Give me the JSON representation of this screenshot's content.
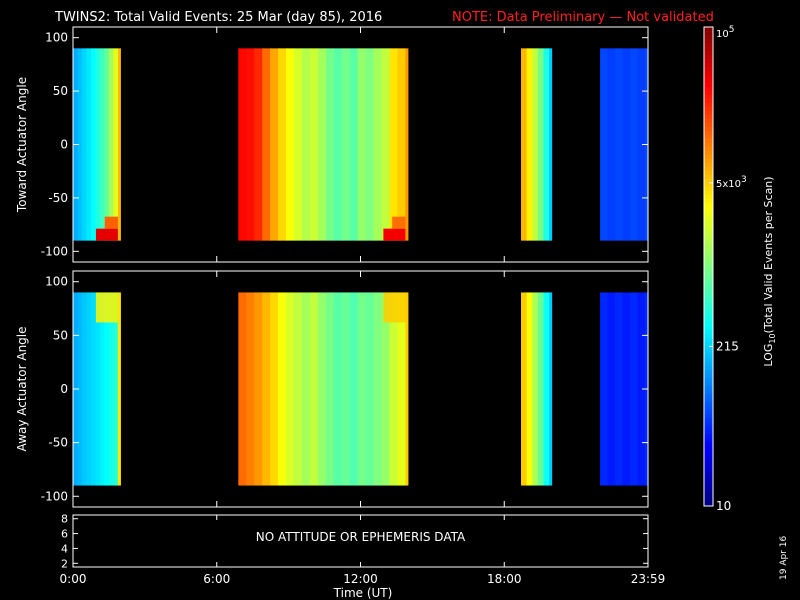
{
  "header": {
    "title": "TWINS2: Total Valid Events: 25 Mar (day  85), 2016",
    "note": "NOTE: Data Preliminary — Not validated"
  },
  "footer": {
    "xlabel": "Time (UT)",
    "date_stamp": "19 Apr 16"
  },
  "colorbar": {
    "label": "LOG10(Total Valid Events per Scan)",
    "ticks": [
      {
        "value": 100000,
        "label": "10^5"
      },
      {
        "value": 5000,
        "label": "5x10^3"
      },
      {
        "value": 215,
        "label": "215"
      },
      {
        "value": 10,
        "label": "10"
      }
    ],
    "range": [
      10,
      100000
    ],
    "scale": "log"
  },
  "chart_data": [
    {
      "type": "heatmap",
      "ylabel": "Toward Actuator Angle",
      "xlim": [
        0,
        24
      ],
      "ylim": [
        -110,
        110
      ],
      "y_ticks": [
        100,
        50,
        0,
        -50,
        -100
      ],
      "x_ticks": [
        "0:00",
        "6:00",
        "12:00",
        "18:00",
        "23:59"
      ],
      "data_ylim": [
        -90,
        90
      ],
      "segments": [
        {
          "start": 0.0,
          "end": 2.0,
          "columns": [
            150,
            180,
            220,
            260,
            320,
            420,
            550,
            800,
            1400,
            2500
          ],
          "edge": 6000,
          "low_end_hotspot": 40000
        },
        {
          "start": 6.9,
          "end": 14.0,
          "columns": [
            30000,
            28000,
            22000,
            12000,
            7000,
            4500,
            3000,
            2200,
            1600,
            2000,
            1400,
            900,
            700,
            900,
            700,
            1200,
            1000,
            1400,
            1800,
            4000,
            5000
          ],
          "edge": 8000,
          "low_end_hotspot": 35000
        },
        {
          "start": 18.7,
          "end": 20.0,
          "columns": [
            6000,
            3500,
            1800,
            900,
            400
          ],
          "edge": 200,
          "low_end_hotspot": null
        },
        {
          "start": 22.0,
          "end": 24.0,
          "columns": [
            60,
            55,
            60,
            55,
            60,
            55
          ],
          "edge": 60,
          "low_end_hotspot": null
        }
      ]
    },
    {
      "type": "heatmap",
      "ylabel": "Away Actuator Angle",
      "xlim": [
        0,
        24
      ],
      "ylim": [
        -110,
        110
      ],
      "y_ticks": [
        100,
        50,
        0,
        -50,
        -100
      ],
      "x_ticks": [
        "0:00",
        "6:00",
        "12:00",
        "18:00",
        "23:59"
      ],
      "data_ylim": [
        -90,
        90
      ],
      "segments": [
        {
          "start": 0.0,
          "end": 2.0,
          "columns": [
            150,
            170,
            190,
            210,
            230,
            250,
            280,
            320,
            380,
            450
          ],
          "edge": 4000,
          "high_end_hotspot": 3500
        },
        {
          "start": 6.9,
          "end": 14.0,
          "columns": [
            12000,
            10000,
            8000,
            6000,
            4500,
            3000,
            2200,
            1800,
            1400,
            1800,
            1200,
            900,
            700,
            800,
            650,
            900,
            800,
            1000,
            1200,
            2000,
            2500
          ],
          "edge": 5000,
          "high_end_hotspot": 5000
        },
        {
          "start": 18.7,
          "end": 20.0,
          "columns": [
            5000,
            3000,
            1500,
            800,
            350
          ],
          "edge": 200,
          "high_end_hotspot": null
        },
        {
          "start": 22.0,
          "end": 24.0,
          "columns": [
            45,
            40,
            45,
            40,
            45,
            40
          ],
          "edge": 45,
          "high_end_hotspot": null
        }
      ]
    },
    {
      "type": "line",
      "ylim": [
        1.5,
        8.5
      ],
      "y_ticks": [
        8,
        6,
        4,
        2
      ],
      "x_ticks": [
        "0:00",
        "6:00",
        "12:00",
        "18:00",
        "23:59"
      ],
      "message": "NO ATTITUDE OR EPHEMERIS DATA"
    }
  ]
}
